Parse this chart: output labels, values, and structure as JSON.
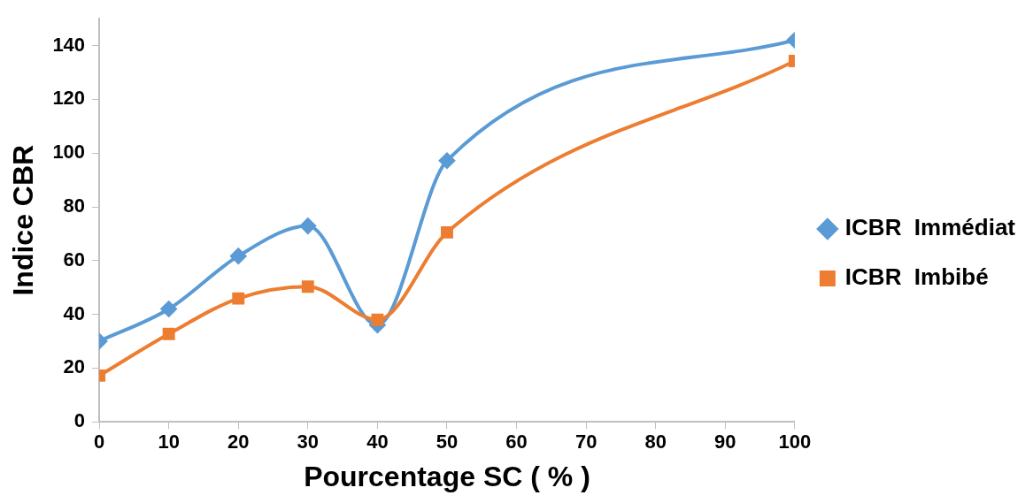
{
  "chart_data": {
    "type": "line",
    "xlabel": "Pourcentage SC ( % )",
    "ylabel": "Indice CBR",
    "x": [
      0,
      10,
      20,
      30,
      40,
      50,
      100
    ],
    "series": [
      {
        "name": "ICBR  Immédiat",
        "color": "#5b9bd5",
        "marker": "diamond",
        "values": [
          30,
          42,
          61.7,
          72.9,
          36,
          97.2,
          142
        ]
      },
      {
        "name": "ICBR  Imbibé",
        "color": "#ed7d31",
        "marker": "square",
        "values": [
          17.2,
          32.7,
          45.9,
          50.3,
          38,
          70.5,
          134.3
        ]
      }
    ],
    "xlim": [
      0,
      100
    ],
    "xticks": [
      0,
      10,
      20,
      30,
      40,
      50,
      60,
      70,
      80,
      90,
      100
    ],
    "ylim": [
      0,
      150
    ],
    "yticks": [
      0,
      20,
      40,
      60,
      80,
      100,
      120,
      140
    ],
    "grid": false,
    "legend": "right",
    "line_style": "solid"
  }
}
